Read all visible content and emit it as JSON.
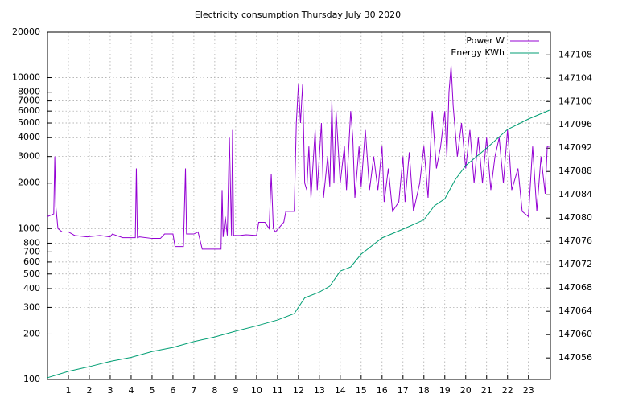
{
  "chart_data": {
    "type": "line",
    "title": "Electricity consumption Thursday July 30 2020",
    "xlim": [
      0,
      24.05
    ],
    "xticks": [
      1,
      2,
      3,
      4,
      5,
      6,
      7,
      8,
      9,
      10,
      11,
      12,
      13,
      14,
      15,
      16,
      17,
      18,
      19,
      20,
      21,
      22,
      23
    ],
    "ylim": [
      100,
      20000
    ],
    "ylog": true,
    "yticks": [
      100,
      200,
      300,
      400,
      500,
      600,
      700,
      800,
      1000,
      2000,
      3000,
      4000,
      5000,
      6000,
      7000,
      8000,
      10000,
      20000
    ],
    "y2lim": [
      147052.3,
      147111.9
    ],
    "y2ticks": [
      147056,
      147060,
      147064,
      147068,
      147072,
      147076,
      147080,
      147084,
      147088,
      147092,
      147096,
      147100,
      147104,
      147108
    ],
    "grid": true,
    "legend": "top-right",
    "series": [
      {
        "name": "Power W",
        "color": "#9400d3",
        "x": [
          0,
          0.3,
          0.35,
          0.4,
          0.5,
          0.7,
          1.0,
          1.3,
          1.9,
          2.5,
          3.0,
          3.1,
          3.6,
          4.2,
          4.25,
          4.3,
          4.4,
          5.0,
          5.4,
          5.6,
          6.0,
          6.1,
          6.5,
          6.6,
          6.65,
          7.0,
          7.2,
          7.4,
          8.0,
          8.3,
          8.35,
          8.4,
          8.5,
          8.6,
          8.7,
          8.8,
          8.85,
          8.9,
          9.2,
          9.5,
          10.0,
          10.1,
          10.4,
          10.6,
          10.7,
          10.8,
          10.9,
          11.3,
          11.4,
          11.8,
          11.9,
          12.0,
          12.1,
          12.2,
          12.3,
          12.4,
          12.5,
          12.6,
          12.8,
          12.9,
          13.1,
          13.2,
          13.4,
          13.5,
          13.6,
          13.7,
          13.8,
          14.0,
          14.2,
          14.3,
          14.5,
          14.6,
          14.7,
          14.9,
          15.0,
          15.2,
          15.4,
          15.6,
          15.8,
          16.0,
          16.1,
          16.3,
          16.5,
          16.8,
          17.0,
          17.1,
          17.3,
          17.5,
          17.8,
          18.0,
          18.2,
          18.4,
          18.6,
          18.8,
          19.0,
          19.1,
          19.2,
          19.3,
          19.4,
          19.6,
          19.8,
          20.0,
          20.2,
          20.4,
          20.6,
          20.8,
          21.0,
          21.2,
          21.4,
          21.6,
          21.8,
          22.0,
          22.1,
          22.2,
          22.5,
          22.7,
          23.0,
          23.2,
          23.4,
          23.6,
          23.8,
          23.9,
          24.0
        ],
        "values": [
          1200,
          1250,
          3000,
          1400,
          1000,
          950,
          950,
          900,
          880,
          900,
          880,
          920,
          870,
          870,
          2500,
          870,
          880,
          860,
          860,
          920,
          920,
          760,
          760,
          2500,
          920,
          920,
          950,
          730,
          730,
          730,
          1800,
          880,
          1200,
          900,
          4000,
          900,
          4500,
          900,
          900,
          910,
          900,
          1100,
          1100,
          1000,
          2300,
          1000,
          950,
          1100,
          1300,
          1300,
          5000,
          9000,
          5000,
          9000,
          2000,
          1800,
          3500,
          1600,
          4500,
          1800,
          5000,
          1600,
          3000,
          1900,
          7000,
          2000,
          6000,
          2000,
          3500,
          1800,
          6000,
          4000,
          1600,
          3500,
          1900,
          4500,
          1800,
          3000,
          1800,
          3500,
          1500,
          2500,
          1300,
          1500,
          3000,
          1500,
          3200,
          1300,
          2000,
          3500,
          1600,
          6000,
          2500,
          3500,
          6000,
          3000,
          8000,
          12000,
          6500,
          3000,
          5000,
          2500,
          4500,
          2000,
          4000,
          2000,
          4000,
          1800,
          3000,
          4000,
          2000,
          4500,
          3000,
          1800,
          2500,
          1300,
          1200,
          3500,
          1300,
          3000,
          1700,
          3500,
          3500
        ]
      },
      {
        "name": "Energy KWh",
        "color": "#009e73",
        "axis": "y2",
        "x": [
          0,
          1,
          2,
          3,
          4,
          5,
          6,
          7,
          8,
          9,
          10,
          11,
          11.8,
          12.3,
          13,
          13.5,
          14,
          14.5,
          15,
          16,
          17,
          18,
          18.5,
          19,
          19.5,
          20,
          21,
          22,
          23,
          24
        ],
        "values": [
          147052.6,
          147053.7,
          147054.5,
          147055.4,
          147056.1,
          147057.1,
          147057.8,
          147058.8,
          147059.6,
          147060.6,
          147061.5,
          147062.5,
          147063.6,
          147066.3,
          147067.3,
          147068.3,
          147070.9,
          147071.6,
          147073.8,
          147076.6,
          147078.1,
          147079.7,
          147082.1,
          147083.3,
          147086.6,
          147089,
          147092,
          147095.2,
          147097,
          147098.5
        ]
      }
    ]
  }
}
